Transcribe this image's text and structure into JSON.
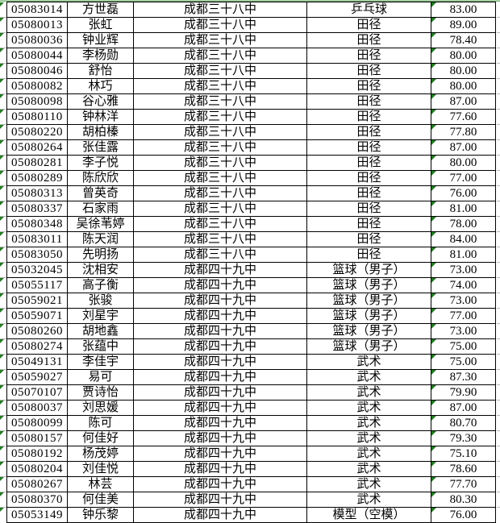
{
  "sheet": {
    "top_line_color": "#4f9b4f",
    "grid_border_color": "#000000",
    "gridline_color": "#b8b8b8",
    "error_triangle_color": "#1f7d1f"
  },
  "table": {
    "rows": [
      {
        "id": "05083014",
        "name": "方世磊",
        "school": "成都三十八中",
        "sport": "乒乓球",
        "score": "83.00"
      },
      {
        "id": "05080013",
        "name": "张虹",
        "school": "成都三十八中",
        "sport": "田径",
        "score": "89.00"
      },
      {
        "id": "05080036",
        "name": "钟业辉",
        "school": "成都三十八中",
        "sport": "田径",
        "score": "78.40"
      },
      {
        "id": "05080044",
        "name": "李杨勋",
        "school": "成都三十八中",
        "sport": "田径",
        "score": "80.00"
      },
      {
        "id": "05080046",
        "name": "舒怡",
        "school": "成都三十八中",
        "sport": "田径",
        "score": "80.00"
      },
      {
        "id": "05080082",
        "name": "林巧",
        "school": "成都三十八中",
        "sport": "田径",
        "score": "80.00"
      },
      {
        "id": "05080098",
        "name": "谷心雅",
        "school": "成都三十八中",
        "sport": "田径",
        "score": "87.00"
      },
      {
        "id": "05080110",
        "name": "钟林洋",
        "school": "成都三十八中",
        "sport": "田径",
        "score": "77.60"
      },
      {
        "id": "05080220",
        "name": "胡柏榛",
        "school": "成都三十八中",
        "sport": "田径",
        "score": "77.80"
      },
      {
        "id": "05080264",
        "name": "张佳露",
        "school": "成都三十八中",
        "sport": "田径",
        "score": "87.00"
      },
      {
        "id": "05080281",
        "name": "李子悦",
        "school": "成都三十八中",
        "sport": "田径",
        "score": "80.00"
      },
      {
        "id": "05080289",
        "name": "陈欣欣",
        "school": "成都三十八中",
        "sport": "田径",
        "score": "77.00"
      },
      {
        "id": "05080313",
        "name": "曾英奇",
        "school": "成都三十八中",
        "sport": "田径",
        "score": "76.00"
      },
      {
        "id": "05080337",
        "name": "石家雨",
        "school": "成都三十八中",
        "sport": "田径",
        "score": "81.00"
      },
      {
        "id": "05080348",
        "name": "吴徐苇婷",
        "school": "成都三十八中",
        "sport": "田径",
        "score": "78.00"
      },
      {
        "id": "05083011",
        "name": "陈天润",
        "school": "成都三十八中",
        "sport": "田径",
        "score": "84.00"
      },
      {
        "id": "05083050",
        "name": "先明扬",
        "school": "成都三十八中",
        "sport": "田径",
        "score": "81.00"
      },
      {
        "id": "05032045",
        "name": "沈相安",
        "school": "成都四十九中",
        "sport": "篮球（男子）",
        "score": "73.00"
      },
      {
        "id": "05055117",
        "name": "高子衡",
        "school": "成都四十九中",
        "sport": "篮球（男子）",
        "score": "74.00"
      },
      {
        "id": "05059021",
        "name": "张骏",
        "school": "成都四十九中",
        "sport": "篮球（男子）",
        "score": "73.00"
      },
      {
        "id": "05059071",
        "name": "刘星宇",
        "school": "成都四十九中",
        "sport": "篮球（男子）",
        "score": "77.00"
      },
      {
        "id": "05080260",
        "name": "胡地鑫",
        "school": "成都四十九中",
        "sport": "篮球（男子）",
        "score": "73.00"
      },
      {
        "id": "05080274",
        "name": "张蕴中",
        "school": "成都四十九中",
        "sport": "篮球（男子）",
        "score": "75.00"
      },
      {
        "id": "05049131",
        "name": "李佳宇",
        "school": "成都四十九中",
        "sport": "武术",
        "score": "75.00"
      },
      {
        "id": "05059027",
        "name": "易可",
        "school": "成都四十九中",
        "sport": "武术",
        "score": "87.30"
      },
      {
        "id": "05070107",
        "name": "贾诗怡",
        "school": "成都四十九中",
        "sport": "武术",
        "score": "79.90"
      },
      {
        "id": "05080037",
        "name": "刘思媛",
        "school": "成都四十九中",
        "sport": "武术",
        "score": "87.00"
      },
      {
        "id": "05080099",
        "name": "陈可",
        "school": "成都四十九中",
        "sport": "武术",
        "score": "80.70"
      },
      {
        "id": "05080157",
        "name": "何佳好",
        "school": "成都四十九中",
        "sport": "武术",
        "score": "79.30"
      },
      {
        "id": "05080192",
        "name": "杨茂婷",
        "school": "成都四十九中",
        "sport": "武术",
        "score": "75.10"
      },
      {
        "id": "05080204",
        "name": "刘佳悦",
        "school": "成都四十九中",
        "sport": "武术",
        "score": "78.60"
      },
      {
        "id": "05080267",
        "name": "林芸",
        "school": "成都四十九中",
        "sport": "武术",
        "score": "77.70"
      },
      {
        "id": "05080370",
        "name": "何佳美",
        "school": "成都四十九中",
        "sport": "武术",
        "score": "80.30"
      },
      {
        "id": "05053149",
        "name": "钟乐黎",
        "school": "成都四十九中",
        "sport": "模型（空模）",
        "score": "76.00"
      }
    ]
  }
}
